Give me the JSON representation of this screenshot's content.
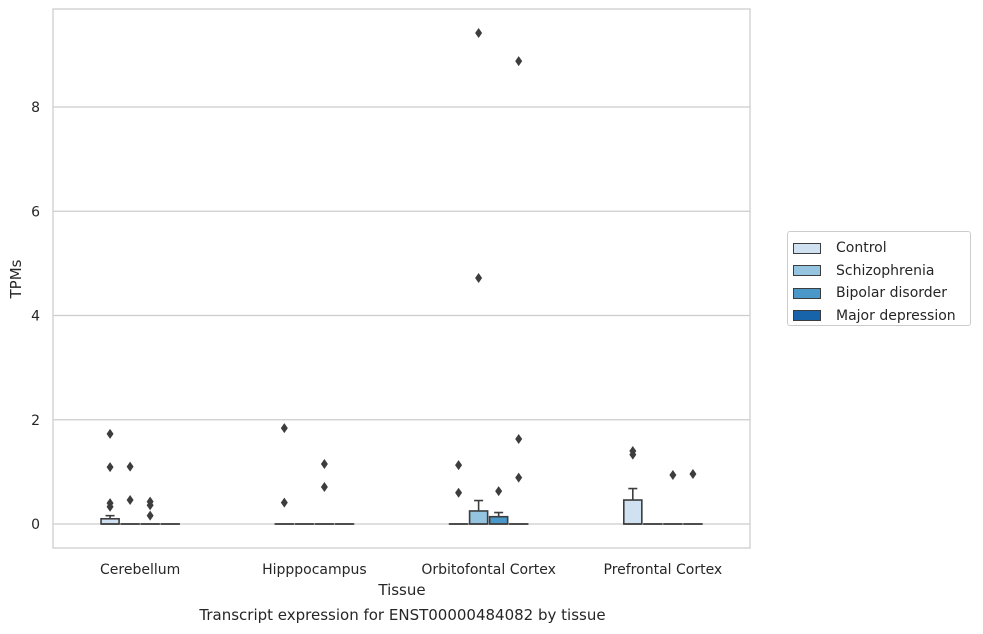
{
  "chart_data": {
    "type": "box",
    "xlabel": "Tissue",
    "ylabel": "TPMs",
    "caption": "Transcript expression for ENST00000484082 by tissue",
    "ylim": [
      -0.45,
      9.85
    ],
    "yticks": [
      0,
      2,
      4,
      6,
      8
    ],
    "grid": "horizontal",
    "legend_position": "right",
    "categories": [
      "Cerebellum",
      "Hipppocampus",
      "Orbitofontal Cortex",
      "Prefrontal Cortex"
    ],
    "series": [
      {
        "name": "Control",
        "color": "#d0e1f2",
        "boxes": [
          {
            "min": 0,
            "q1": 0,
            "median": 0,
            "q3": 0.1,
            "max": 0.16,
            "outliers": [
              1.73,
              1.09,
              0.4,
              0.33
            ]
          },
          {
            "min": 0,
            "q1": 0,
            "median": 0,
            "q3": 0,
            "max": 0,
            "outliers": [
              1.84,
              0.41
            ]
          },
          {
            "min": 0,
            "q1": 0,
            "median": 0,
            "q3": 0,
            "max": 0,
            "outliers": [
              1.13,
              0.6
            ]
          },
          {
            "min": 0,
            "q1": 0,
            "median": 0,
            "q3": 0.46,
            "max": 0.68,
            "outliers": [
              1.4,
              1.33
            ]
          }
        ]
      },
      {
        "name": "Schizophrenia",
        "color": "#94c4df",
        "boxes": [
          {
            "min": 0,
            "q1": 0,
            "median": 0,
            "q3": 0,
            "max": 0,
            "outliers": [
              0.46,
              1.1
            ]
          },
          {
            "min": 0,
            "q1": 0,
            "median": 0,
            "q3": 0,
            "max": 0,
            "outliers": []
          },
          {
            "min": 0,
            "q1": 0,
            "median": 0,
            "q3": 0.25,
            "max": 0.45,
            "outliers": [
              9.42,
              4.72
            ]
          },
          {
            "min": 0,
            "q1": 0,
            "median": 0,
            "q3": 0,
            "max": 0,
            "outliers": []
          }
        ]
      },
      {
        "name": "Bipolar disorder",
        "color": "#4a98c9",
        "boxes": [
          {
            "min": 0,
            "q1": 0,
            "median": 0,
            "q3": 0,
            "max": 0,
            "outliers": [
              0.43,
              0.36,
              0.16
            ]
          },
          {
            "min": 0,
            "q1": 0,
            "median": 0,
            "q3": 0,
            "max": 0,
            "outliers": [
              1.15,
              0.71
            ]
          },
          {
            "min": 0,
            "q1": 0,
            "median": 0,
            "q3": 0.14,
            "max": 0.22,
            "outliers": [
              0.63
            ]
          },
          {
            "min": 0,
            "q1": 0,
            "median": 0,
            "q3": 0,
            "max": 0,
            "outliers": [
              0.94
            ]
          }
        ]
      },
      {
        "name": "Major depression",
        "color": "#1764ab",
        "boxes": [
          {
            "min": 0,
            "q1": 0,
            "median": 0,
            "q3": 0,
            "max": 0,
            "outliers": []
          },
          {
            "min": 0,
            "q1": 0,
            "median": 0,
            "q3": 0,
            "max": 0,
            "outliers": []
          },
          {
            "min": 0,
            "q1": 0,
            "median": 0,
            "q3": 0,
            "max": 0,
            "outliers": [
              8.88,
              1.63,
              0.89
            ]
          },
          {
            "min": 0,
            "q1": 0,
            "median": 0,
            "q3": 0,
            "max": 0,
            "outliers": [
              0.96
            ]
          }
        ]
      }
    ]
  }
}
